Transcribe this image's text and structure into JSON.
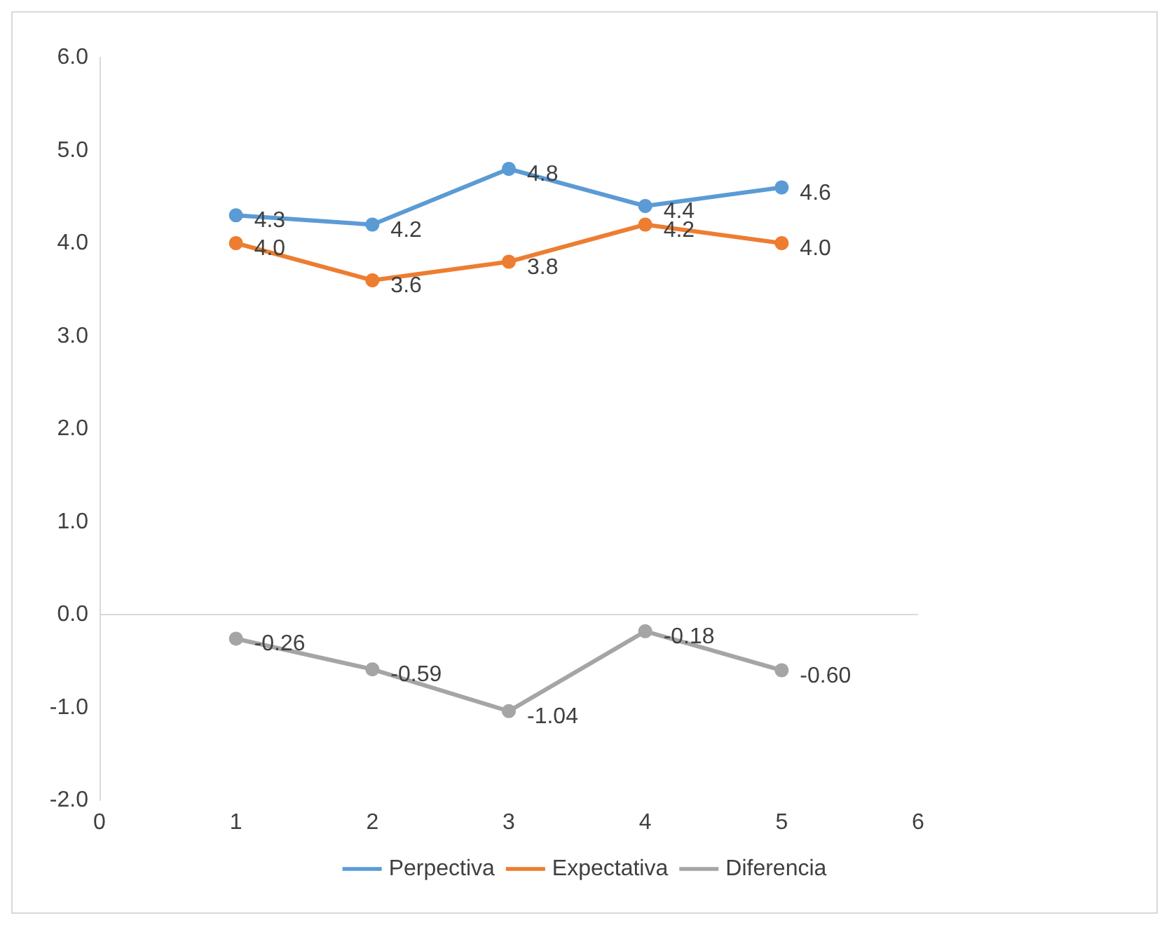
{
  "chart_data": {
    "type": "line",
    "x": [
      1,
      2,
      3,
      4,
      5
    ],
    "series": [
      {
        "name": "Perpectiva",
        "color": "#5b9bd5",
        "values": [
          4.3,
          4.2,
          4.8,
          4.4,
          4.6
        ],
        "value_labels": [
          "4.3",
          "4.2",
          "4.8",
          "4.4",
          "4.6"
        ]
      },
      {
        "name": "Expectativa",
        "color": "#ed7d31",
        "values": [
          4.0,
          3.6,
          3.8,
          4.2,
          4.0
        ],
        "value_labels": [
          "4.0",
          "3.6",
          "3.8",
          "4.2",
          "4.0"
        ]
      },
      {
        "name": "Diferencia",
        "color": "#a5a5a5",
        "values": [
          -0.26,
          -0.59,
          -1.04,
          -0.18,
          -0.6
        ],
        "value_labels": [
          "-0.26",
          "-0.59",
          "-1.04",
          "-0.18",
          "-0.60"
        ]
      }
    ],
    "xlim": [
      0,
      6
    ],
    "xticks": [
      0,
      1,
      2,
      3,
      4,
      5,
      6
    ],
    "ylim": [
      -2,
      6
    ],
    "yticks": [
      {
        "value": -2,
        "label": "-2.0"
      },
      {
        "value": -1,
        "label": "-1.0"
      },
      {
        "value": 0,
        "label": "0.0"
      },
      {
        "value": 1,
        "label": "1.0"
      },
      {
        "value": 2,
        "label": "2.0"
      },
      {
        "value": 3,
        "label": "3.0"
      },
      {
        "value": 4,
        "label": "4.0"
      },
      {
        "value": 5,
        "label": "5.0"
      },
      {
        "value": 6,
        "label": "6.0"
      }
    ],
    "ref_lines": [
      {
        "axis": "y",
        "value": 0,
        "color": "#d9d9d9",
        "line_style": "solid"
      }
    ],
    "grid": false,
    "legend": "bottom",
    "marker": "circle",
    "line_style": "solid"
  }
}
